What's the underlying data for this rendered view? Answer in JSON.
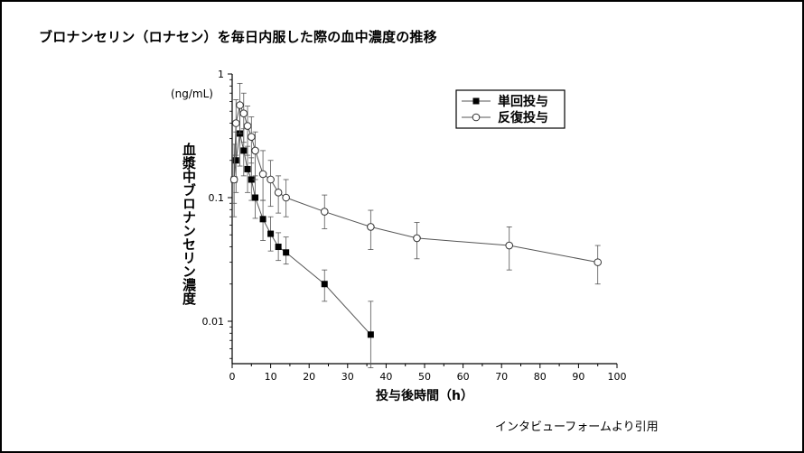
{
  "title": "ブロナンセリン（ロナセン）を毎日内服した際の血中濃度の推移",
  "credit": "インタビューフォームより引用",
  "chart_data": {
    "type": "line",
    "xlabel": "投与後時間（h）",
    "ylabel": "血漿中ブロナンセリン濃度",
    "yunit": "(ng/mL)",
    "xlim": [
      0,
      100
    ],
    "ylim": [
      0.003,
      1
    ],
    "yscale": "log",
    "xticks": [
      0,
      10,
      20,
      30,
      40,
      50,
      60,
      70,
      80,
      90,
      100
    ],
    "yticks": [
      {
        "value": 1,
        "label": "1"
      },
      {
        "value": 0.1,
        "label": "0.1"
      },
      {
        "value": 0.01,
        "label": "0.01"
      }
    ],
    "grid": false,
    "legend_position": "top-right",
    "series": [
      {
        "name": "単回投与",
        "marker": "filled-square",
        "color": "#000000",
        "x": [
          0.5,
          1,
          2,
          3,
          4,
          5,
          6,
          8,
          10,
          12,
          14,
          24,
          36
        ],
        "y": [
          0.14,
          0.2,
          0.33,
          0.24,
          0.17,
          0.14,
          0.1,
          0.067,
          0.051,
          0.04,
          0.036,
          0.02,
          0.0078
        ],
        "err_hi": [
          0.22,
          0.34,
          0.55,
          0.36,
          0.26,
          0.21,
          0.15,
          0.095,
          0.07,
          0.052,
          0.048,
          0.026,
          0.0145
        ],
        "err_lo": [
          0.09,
          0.11,
          0.18,
          0.15,
          0.11,
          0.095,
          0.068,
          0.045,
          0.037,
          0.031,
          0.029,
          0.0145,
          0.0042
        ]
      },
      {
        "name": "反復投与",
        "marker": "open-circle",
        "color": "#ffffff",
        "x": [
          0.5,
          1,
          2,
          3,
          4,
          5,
          6,
          8,
          10,
          12,
          14,
          24,
          36,
          48,
          72,
          95
        ],
        "y": [
          0.14,
          0.4,
          0.56,
          0.48,
          0.38,
          0.31,
          0.24,
          0.155,
          0.14,
          0.11,
          0.1,
          0.077,
          0.058,
          0.047,
          0.041,
          0.03
        ],
        "err_hi": [
          0.27,
          0.62,
          0.84,
          0.7,
          0.55,
          0.45,
          0.34,
          0.24,
          0.2,
          0.15,
          0.14,
          0.105,
          0.079,
          0.063,
          0.058,
          0.041
        ],
        "err_lo": [
          0.07,
          0.22,
          0.33,
          0.28,
          0.22,
          0.19,
          0.14,
          0.095,
          0.085,
          0.075,
          0.07,
          0.056,
          0.038,
          0.032,
          0.026,
          0.02
        ]
      }
    ]
  }
}
